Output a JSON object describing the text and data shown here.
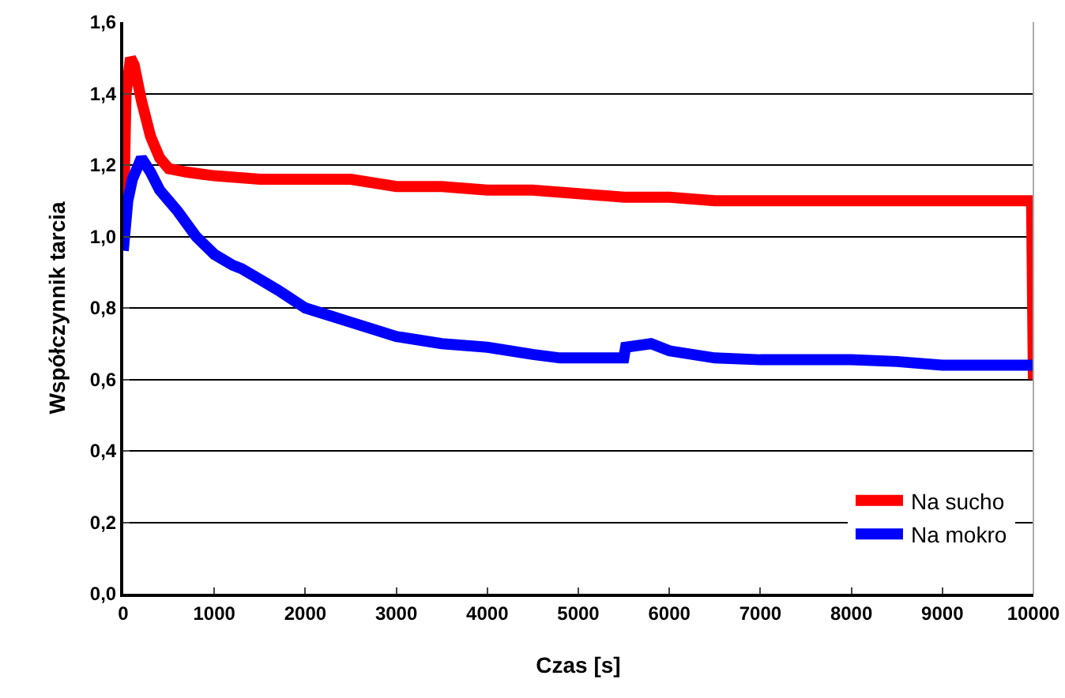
{
  "chart_data": {
    "type": "line",
    "xlabel": "Czas [s]",
    "ylabel": "Współczynnik tarcia",
    "xlim": [
      0,
      10000
    ],
    "xticks": [
      0,
      1000,
      2000,
      3000,
      4000,
      5000,
      6000,
      7000,
      8000,
      9000,
      10000
    ],
    "ylim": [
      0,
      1.6
    ],
    "yticks": [
      {
        "value": 0,
        "label": "0,0"
      },
      {
        "value": 0.2,
        "label": "0,2"
      },
      {
        "value": 0.4,
        "label": "0,4"
      },
      {
        "value": 0.6,
        "label": "0,6"
      },
      {
        "value": 0.8,
        "label": "0,8"
      },
      {
        "value": 1,
        "label": "1,0"
      },
      {
        "value": 1.2,
        "label": "1,2"
      },
      {
        "value": 1.4,
        "label": "1,4"
      },
      {
        "value": 1.6,
        "label": "1,6"
      }
    ],
    "grid": "y",
    "legend": "bottom right",
    "line_style": "solid",
    "marker": "none",
    "series": [
      {
        "name": "Na sucho",
        "color": "#ff0000",
        "x": [
          0,
          30,
          80,
          120,
          200,
          300,
          400,
          500,
          700,
          1000,
          1500,
          2000,
          2500,
          3000,
          3500,
          4000,
          4500,
          5000,
          5500,
          6000,
          6500,
          7000,
          7500,
          8000,
          8500,
          9000,
          9500,
          9980,
          10000
        ],
        "values": [
          1.0,
          1.4,
          1.5,
          1.48,
          1.38,
          1.28,
          1.22,
          1.19,
          1.18,
          1.17,
          1.16,
          1.16,
          1.16,
          1.14,
          1.14,
          1.13,
          1.13,
          1.12,
          1.11,
          1.11,
          1.1,
          1.1,
          1.1,
          1.1,
          1.1,
          1.1,
          1.1,
          1.1,
          0.6
        ]
      },
      {
        "name": "Na mokro",
        "color": "#0000ff",
        "x": [
          0,
          50,
          100,
          200,
          300,
          400,
          600,
          800,
          1000,
          1200,
          1300,
          1500,
          1700,
          2000,
          2500,
          3000,
          3500,
          4000,
          4500,
          4800,
          5500,
          5520,
          5800,
          6000,
          6500,
          7000,
          7500,
          8000,
          8500,
          9000,
          9500,
          10000
        ],
        "values": [
          0.96,
          1.1,
          1.16,
          1.22,
          1.18,
          1.13,
          1.07,
          1.0,
          0.95,
          0.92,
          0.91,
          0.88,
          0.85,
          0.8,
          0.76,
          0.72,
          0.7,
          0.69,
          0.67,
          0.66,
          0.66,
          0.69,
          0.7,
          0.68,
          0.66,
          0.655,
          0.655,
          0.655,
          0.65,
          0.64,
          0.64,
          0.64
        ]
      }
    ]
  }
}
